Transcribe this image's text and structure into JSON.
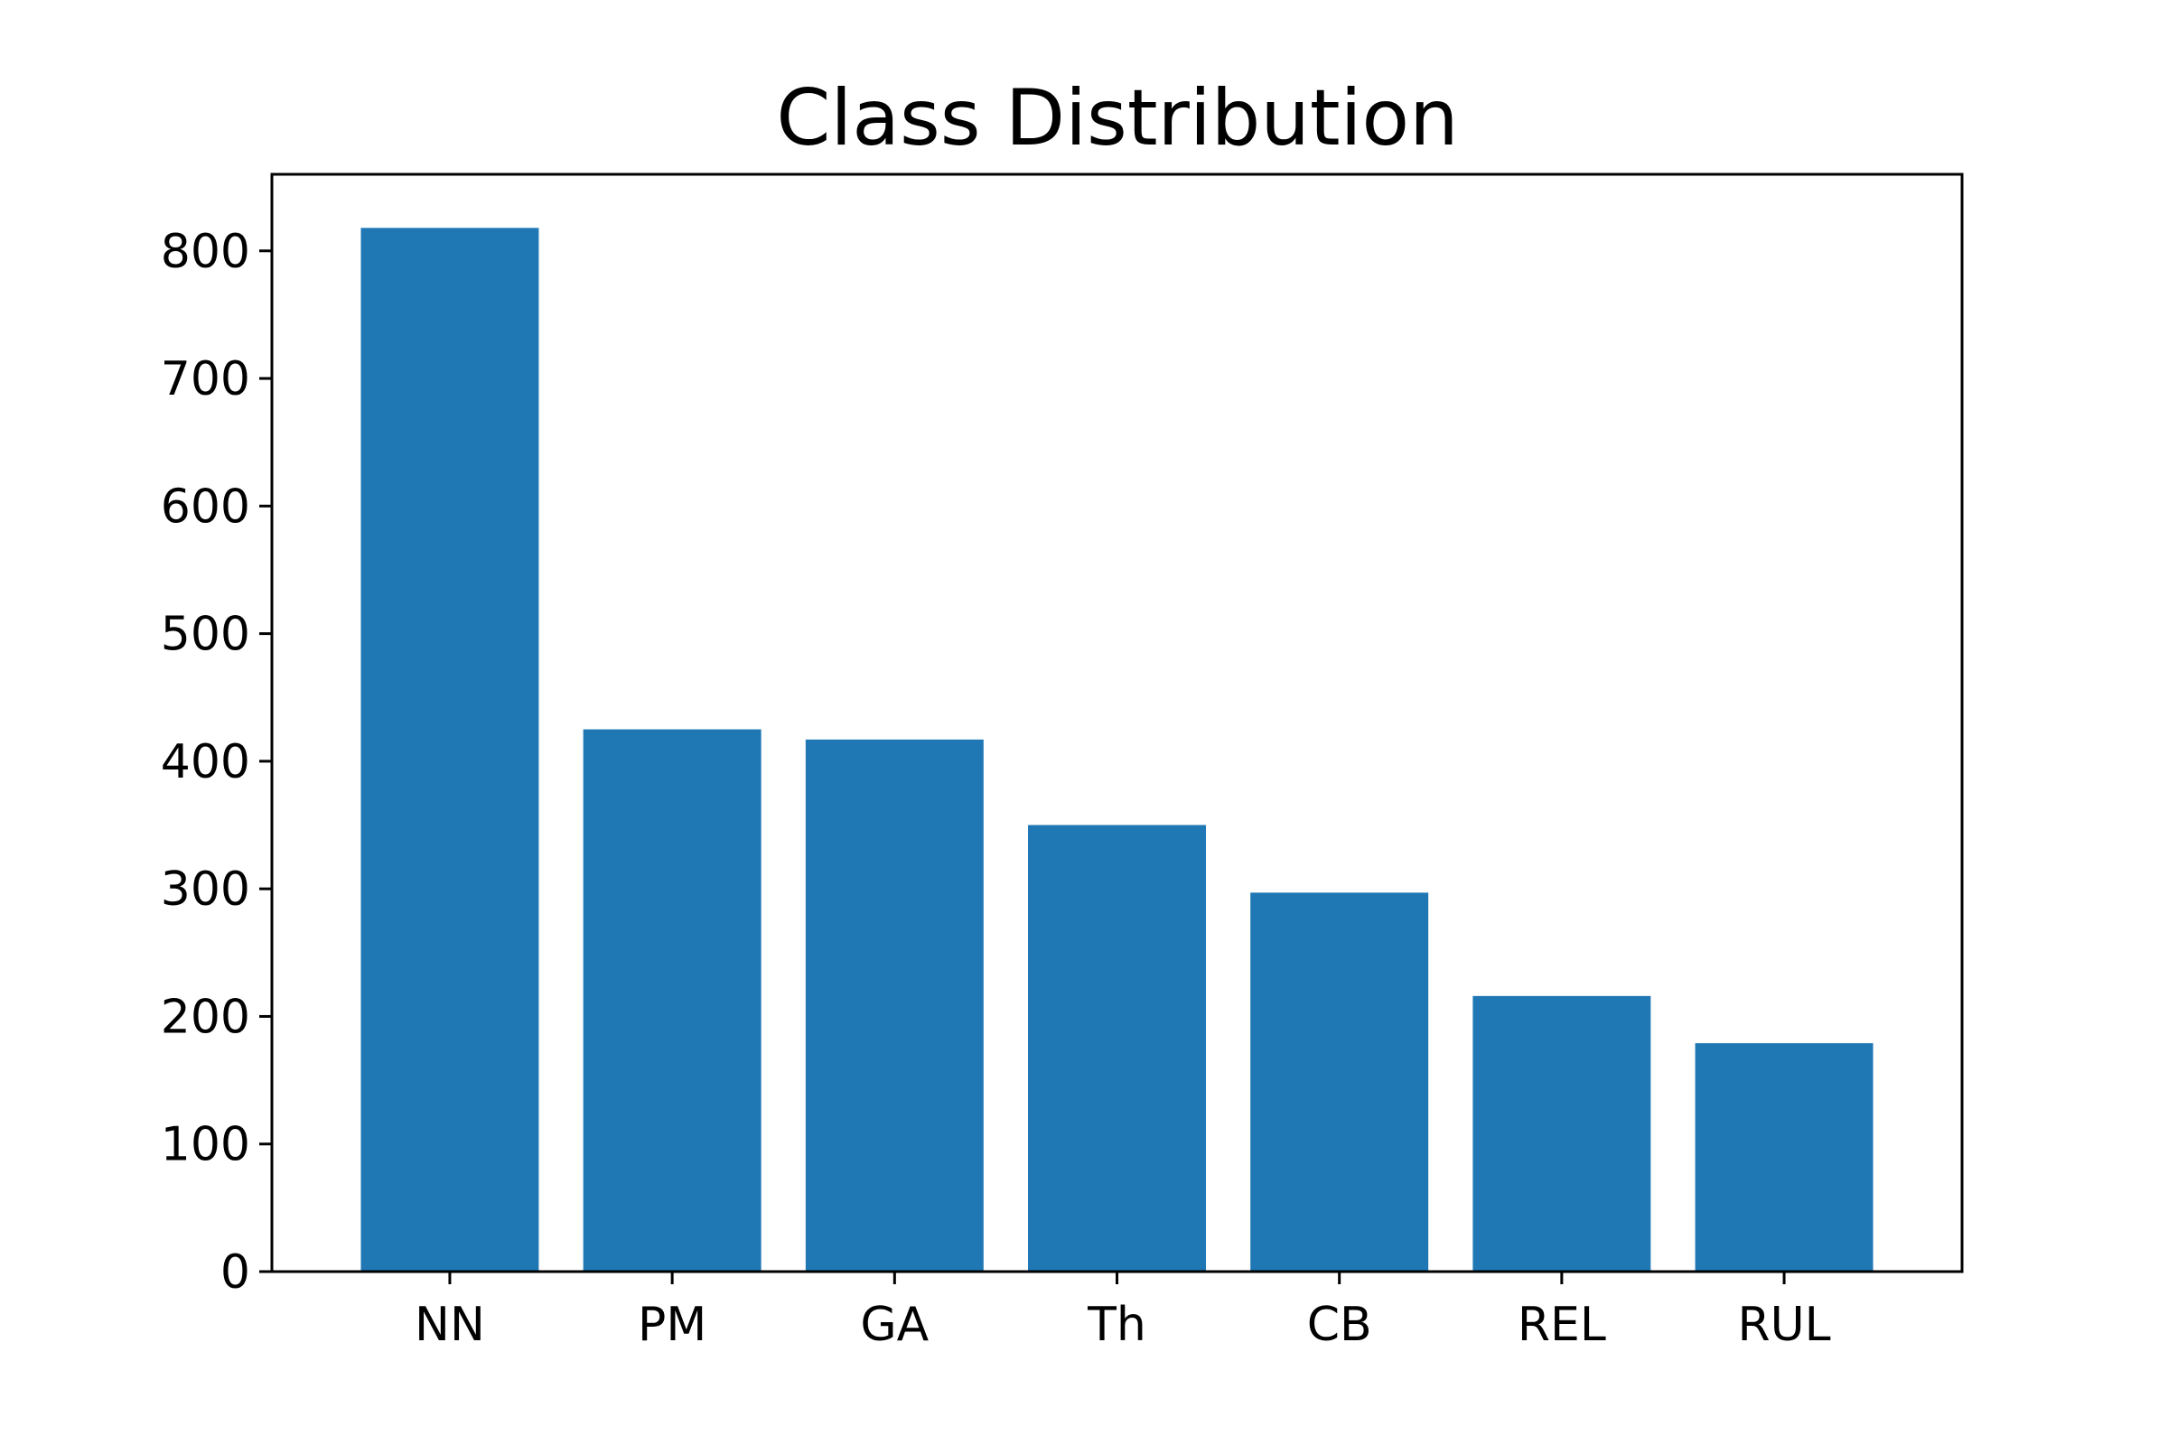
{
  "chart_data": {
    "type": "bar",
    "title": "Class Distribution",
    "xlabel": "",
    "ylabel": "",
    "categories": [
      "NN",
      "PM",
      "GA",
      "Th",
      "CB",
      "REL",
      "RUL"
    ],
    "values": [
      818,
      425,
      417,
      350,
      297,
      216,
      179
    ],
    "ylim": [
      0,
      860
    ],
    "yticks": [
      0,
      100,
      200,
      300,
      400,
      500,
      600,
      700,
      800
    ],
    "grid": false,
    "bar_color": "#1f77b4"
  }
}
